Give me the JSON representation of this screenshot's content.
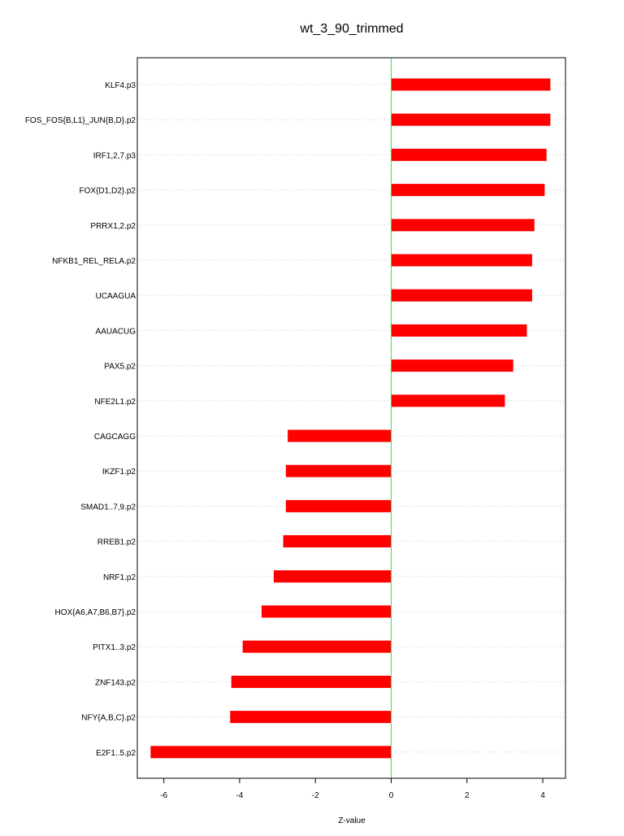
{
  "colors": {
    "bar": "#ff0000",
    "zero_line": "#44dd44",
    "gridline": "#c8c8c8",
    "frame": "#000000"
  },
  "chart_data": {
    "type": "bar",
    "orientation": "horizontal",
    "title": "wt_3_90_trimmed",
    "xlabel": "Z-value",
    "ylabel": "",
    "xlim": [
      -6.7,
      4.6
    ],
    "xticks": [
      -6,
      -4,
      -2,
      0,
      2,
      4
    ],
    "grid": "horizontal-dotted",
    "categories": [
      "KLF4.p3",
      "FOS_FOS{B,L1}_JUN{B,D}.p2",
      "IRF1,2,7.p3",
      "FOX{D1,D2}.p2",
      "PRRX1,2.p2",
      "NFKB1_REL_RELA.p2",
      "UCAAGUA",
      "AAUACUG",
      "PAX5.p2",
      "NFE2L1.p2",
      "CAGCAGG",
      "IKZF1.p2",
      "SMAD1..7,9.p2",
      "RREB1.p2",
      "NRF1.p2",
      "HOX{A6,A7,B6,B7}.p2",
      "PITX1..3.p2",
      "ZNF143.p2",
      "NFY{A,B,C}.p2",
      "E2F1..5.p2"
    ],
    "values": [
      4.2,
      4.2,
      4.1,
      4.05,
      3.78,
      3.72,
      3.72,
      3.58,
      3.22,
      3.0,
      -2.73,
      -2.78,
      -2.78,
      -2.85,
      -3.1,
      -3.42,
      -3.92,
      -4.22,
      -4.25,
      -6.35
    ]
  }
}
